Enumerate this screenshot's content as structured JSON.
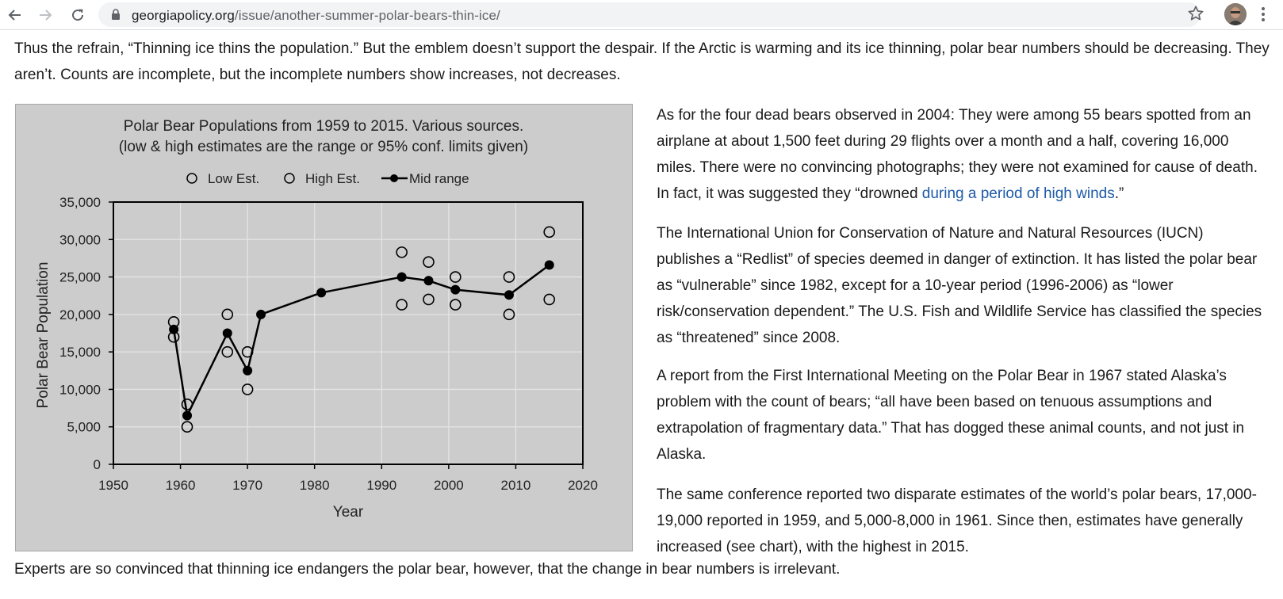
{
  "browser": {
    "url_host": "georgiapolicy.org",
    "url_path": "/issue/another-summer-polar-bears-thin-ice/",
    "icons": {
      "back": "back-arrow-icon",
      "forward": "forward-arrow-icon",
      "reload": "reload-icon",
      "lock": "lock-icon",
      "bookmark": "star-icon",
      "menu": "kebab-menu-icon"
    }
  },
  "article": {
    "intro": "Thus the refrain, “Thinning ice thins the population.” But the emblem doesn’t support the despair. If the Arctic is warming and its ice thinning, polar bear numbers should be decreasing. They aren’t. Counts are incomplete, but the incomplete numbers show increases, not decreases.",
    "p1_before_link": "As for the four dead bears observed in 2004: They were among 55 bears spotted from an airplane at about 1,500 feet during 29 flights over a month and a half, covering 16,000 miles. There were no convincing photographs; they were not examined for cause of death. In fact, it was suggested they “drowned ",
    "p1_link": "during a period of high winds",
    "p1_after_link": ".”",
    "p2": "The International Union for Conservation of Nature and Natural Resources (IUCN) publishes a “Redlist” of species deemed in danger of extinction. It has listed the polar bear as “vulnerable” since 1982, except for a 10-year period (1996-2006) as “lower risk/conservation dependent.” The U.S. Fish and Wildlife Service has classified the species as “threatened” since 2008.",
    "p3": "A report from the First International Meeting on the Polar Bear in 1967 stated Alaska’s problem with the count of bears; “all have been based on tenuous assumptions and extrapolation of fragmentary data.” That has dogged these animal counts, and not just in Alaska.",
    "p4": "The same conference reported two disparate estimates of the world’s polar bears, 17,000-19,000 reported in 1959, and 5,000-8,000 in 1961. Since then, estimates have generally increased (see chart), with the highest in 2015.",
    "closing": "Experts are so convinced that thinning ice endangers the polar bear, however, that the change in bear numbers is irrelevant."
  },
  "colors": {
    "chart_bg": "#cccccc",
    "link": "#1e5aa8"
  },
  "chart_data": {
    "type": "line",
    "title_line1": "Polar Bear Populations from 1959 to 2015. Various sources.",
    "title_line2": "(low & high estimates are the range or 95% conf. limits given)",
    "xlabel": "Year",
    "ylabel": "Polar Bear Population",
    "xlim": [
      1950,
      2020
    ],
    "ylim": [
      0,
      35000
    ],
    "x_ticks": [
      "1950",
      "1960",
      "1970",
      "1980",
      "1990",
      "2000",
      "2010",
      "2020"
    ],
    "y_ticks": [
      "0",
      "5,000",
      "10,000",
      "15,000",
      "20,000",
      "25,000",
      "30,000",
      "35,000"
    ],
    "x_tick_values": [
      1950,
      1960,
      1970,
      1980,
      1990,
      2000,
      2010,
      2020
    ],
    "y_tick_values": [
      0,
      5000,
      10000,
      15000,
      20000,
      25000,
      30000,
      35000
    ],
    "grid": true,
    "legend_position": "top",
    "series": [
      {
        "name": "Low Est.",
        "marker": "open-circle",
        "points": [
          [
            1959,
            17000
          ],
          [
            1961,
            5000
          ],
          [
            1967,
            15000
          ],
          [
            1970,
            10000
          ],
          [
            1993,
            21300
          ],
          [
            1997,
            22000
          ],
          [
            2001,
            21300
          ],
          [
            2009,
            20000
          ],
          [
            2015,
            22000
          ]
        ]
      },
      {
        "name": "High Est.",
        "marker": "open-circle",
        "points": [
          [
            1959,
            19000
          ],
          [
            1961,
            8000
          ],
          [
            1967,
            20000
          ],
          [
            1970,
            15000
          ],
          [
            1993,
            28300
          ],
          [
            1997,
            27000
          ],
          [
            2001,
            25000
          ],
          [
            2009,
            25000
          ],
          [
            2015,
            31000
          ]
        ]
      },
      {
        "name": "Mid range",
        "marker": "filled-circle-line",
        "points": [
          [
            1959,
            18000
          ],
          [
            1961,
            6500
          ],
          [
            1967,
            17500
          ],
          [
            1970,
            12500
          ],
          [
            1972,
            20000
          ],
          [
            1981,
            22900
          ],
          [
            1993,
            25000
          ],
          [
            1997,
            24500
          ],
          [
            2001,
            23300
          ],
          [
            2009,
            22600
          ],
          [
            2015,
            26600
          ]
        ]
      }
    ]
  }
}
